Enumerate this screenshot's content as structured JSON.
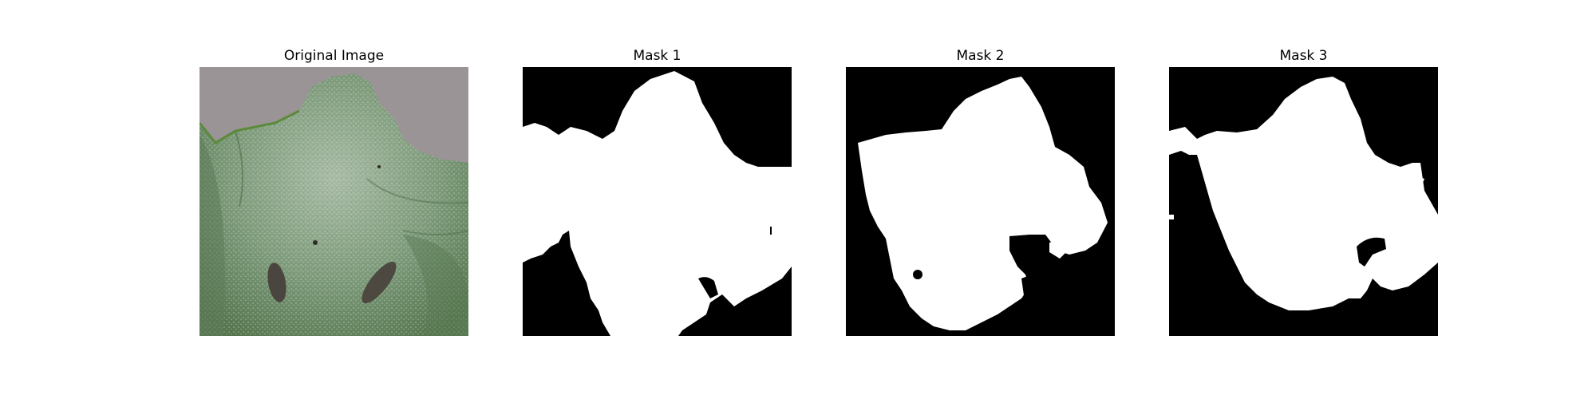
{
  "panels": [
    {
      "title": "Original Image"
    },
    {
      "title": "Mask 1"
    },
    {
      "title": "Mask 2"
    },
    {
      "title": "Mask 3"
    }
  ],
  "colors": {
    "background_gray": "#9a9496",
    "leaf_dark": "#4c6e4a",
    "leaf_mid": "#6f8f6c",
    "leaf_light": "#b9cbb6",
    "leaf_edge": "#5b8a3a",
    "mask_black": "#000000",
    "mask_white": "#ffffff"
  }
}
